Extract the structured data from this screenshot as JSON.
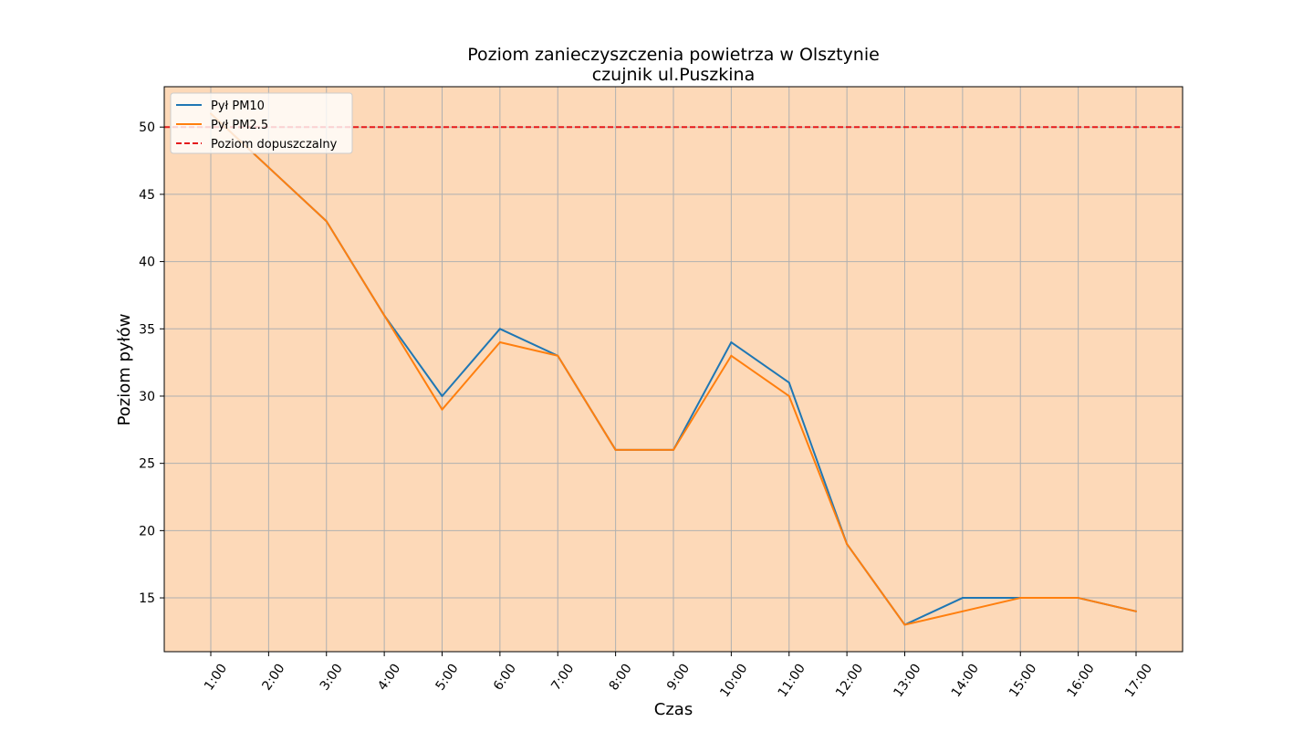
{
  "chart_data": {
    "type": "line",
    "title": "Poziom zanieczyszczenia powietrza w Olsztynie",
    "subtitle": "czujnik ul.Puszkina",
    "xlabel": "Czas",
    "ylabel": "Poziom pyłów",
    "categories": [
      "1:00",
      "2:00",
      "3:00",
      "4:00",
      "5:00",
      "6:00",
      "7:00",
      "8:00",
      "9:00",
      "10:00",
      "11:00",
      "12:00",
      "13:00",
      "14:00",
      "15:00",
      "16:00",
      "17:00"
    ],
    "ylim": [
      11,
      53
    ],
    "yticks": [
      15,
      20,
      25,
      30,
      35,
      40,
      45,
      50
    ],
    "grid": true,
    "background_color": "#fdd9b8",
    "legend_position": "upper-left",
    "series": [
      {
        "name": "Pył PM10",
        "color": "#1f77b4",
        "style": "solid",
        "values": [
          51,
          47,
          43,
          36,
          30,
          35,
          33,
          26,
          26,
          34,
          31,
          19,
          13,
          15,
          15,
          15,
          14
        ]
      },
      {
        "name": "Pył PM2.5",
        "color": "#ff7f0e",
        "style": "solid",
        "values": [
          51,
          47,
          43,
          36,
          29,
          34,
          33,
          26,
          26,
          33,
          30,
          19,
          13,
          14,
          15,
          15,
          14
        ]
      }
    ],
    "reference_line": {
      "name": "Poziom dopuszczalny",
      "value": 50,
      "color": "#e41a1c",
      "style": "dashed"
    }
  }
}
